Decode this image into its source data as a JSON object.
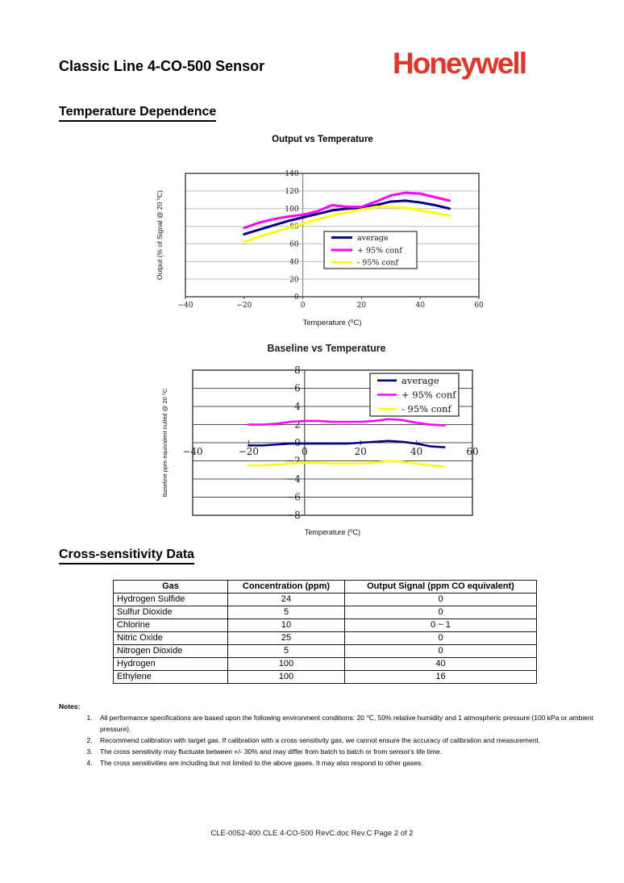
{
  "page": {
    "title": "Classic Line 4-CO-500 Sensor",
    "logo_text": "Honeywell",
    "logo_color": "#E4352B",
    "footer": "CLE-0052-400 CLE 4-CO-500 RevC.doc Rev.C Page 2 of 2"
  },
  "sections": {
    "temperature": {
      "heading": "Temperature Dependence"
    },
    "cross_sensitivity": {
      "heading": "Cross-sensitivity Data"
    }
  },
  "chart_data": [
    {
      "type": "line",
      "title": "Output vs Temperature",
      "xlabel": "Temperature (⁰C)",
      "ylabel": "Output (% of Signal @ 20 ⁰C)",
      "xlim": [
        -40,
        60
      ],
      "ylim": [
        0,
        140
      ],
      "xstep": 20,
      "ystep": 20,
      "grid": "horizontal",
      "legend_position": "center",
      "x": [
        -20,
        -15,
        -10,
        -5,
        0,
        5,
        10,
        15,
        20,
        25,
        30,
        35,
        40,
        45,
        50
      ],
      "series": [
        {
          "name": "average",
          "color": "#000080",
          "values": [
            71,
            76,
            81,
            86,
            90,
            94,
            98,
            100,
            101,
            104,
            108,
            109,
            107,
            104,
            100
          ]
        },
        {
          "name": "+ 95% conf",
          "color": "#FF00FF",
          "values": [
            78,
            84,
            88,
            91,
            93,
            97,
            104,
            102,
            102,
            108,
            115,
            118,
            117,
            113,
            109
          ]
        },
        {
          "name": "- 95% conf",
          "color": "#FFFF00",
          "values": [
            62,
            68,
            73,
            78,
            83,
            88,
            92,
            96,
            99,
            102,
            102,
            101,
            98,
            95,
            92
          ]
        }
      ]
    },
    {
      "type": "line",
      "title": "Baseline vs Temperature",
      "xlabel": "Temperature (⁰C)",
      "ylabel": "Baseline ppm equivalent nulled @ 20 ⁰C",
      "xlim": [
        -40,
        60
      ],
      "ylim": [
        -8,
        8
      ],
      "xstep": 20,
      "ystep": 2,
      "grid": "horizontal",
      "legend_position": "top-right",
      "x": [
        -20,
        -15,
        -10,
        -5,
        0,
        5,
        10,
        15,
        20,
        25,
        30,
        35,
        40,
        45,
        50
      ],
      "series": [
        {
          "name": "average",
          "color": "#000080",
          "values": [
            -0.3,
            -0.3,
            -0.2,
            -0.1,
            -0.1,
            -0.1,
            -0.1,
            -0.1,
            0.0,
            0.1,
            0.2,
            0.1,
            -0.1,
            -0.4,
            -0.5
          ]
        },
        {
          "name": "+ 95% conf",
          "color": "#FF00FF",
          "values": [
            2.0,
            2.0,
            2.1,
            2.3,
            2.4,
            2.4,
            2.3,
            2.3,
            2.3,
            2.4,
            2.6,
            2.5,
            2.2,
            2.0,
            1.9
          ]
        },
        {
          "name": "- 95% conf",
          "color": "#FFFF00",
          "values": [
            -2.5,
            -2.5,
            -2.4,
            -2.3,
            -2.2,
            -2.2,
            -2.3,
            -2.3,
            -2.3,
            -2.2,
            -2.0,
            -2.1,
            -2.3,
            -2.5,
            -2.6
          ]
        }
      ]
    }
  ],
  "table": {
    "headers": [
      "Gas",
      "Concentration (ppm)",
      "Output Signal (ppm CO equivalent)"
    ],
    "rows": [
      [
        "Hydrogen Sulfide",
        "24",
        "0"
      ],
      [
        "Sulfur Dioxide",
        "5",
        "0"
      ],
      [
        "Chlorine",
        "10",
        "0 ~ 1"
      ],
      [
        "Nitric Oxide",
        "25",
        "0"
      ],
      [
        "Nitrogen Dioxide",
        "5",
        "0"
      ],
      [
        "Hydrogen",
        "100",
        "40"
      ],
      [
        "Ethylene",
        "100",
        "16"
      ]
    ]
  },
  "notes": {
    "label": "Notes:",
    "items": [
      "All performance specifications are based upon the following environment conditions: 20 ℃, 50% relative humidity and 1 atmospheric pressure (100 kPa or ambient pressure).",
      "Recommend calibration with target gas. If calibration with a cross sensitivity gas, we cannot ensure the accuracy of calibration and measurement.",
      "The cross sensitivity may fluctuate between +/- 30% and may differ from batch to batch or from sensor's life time.",
      "The cross sensitivities are including but not limited to the above gases. It may also respond to other gases."
    ]
  }
}
